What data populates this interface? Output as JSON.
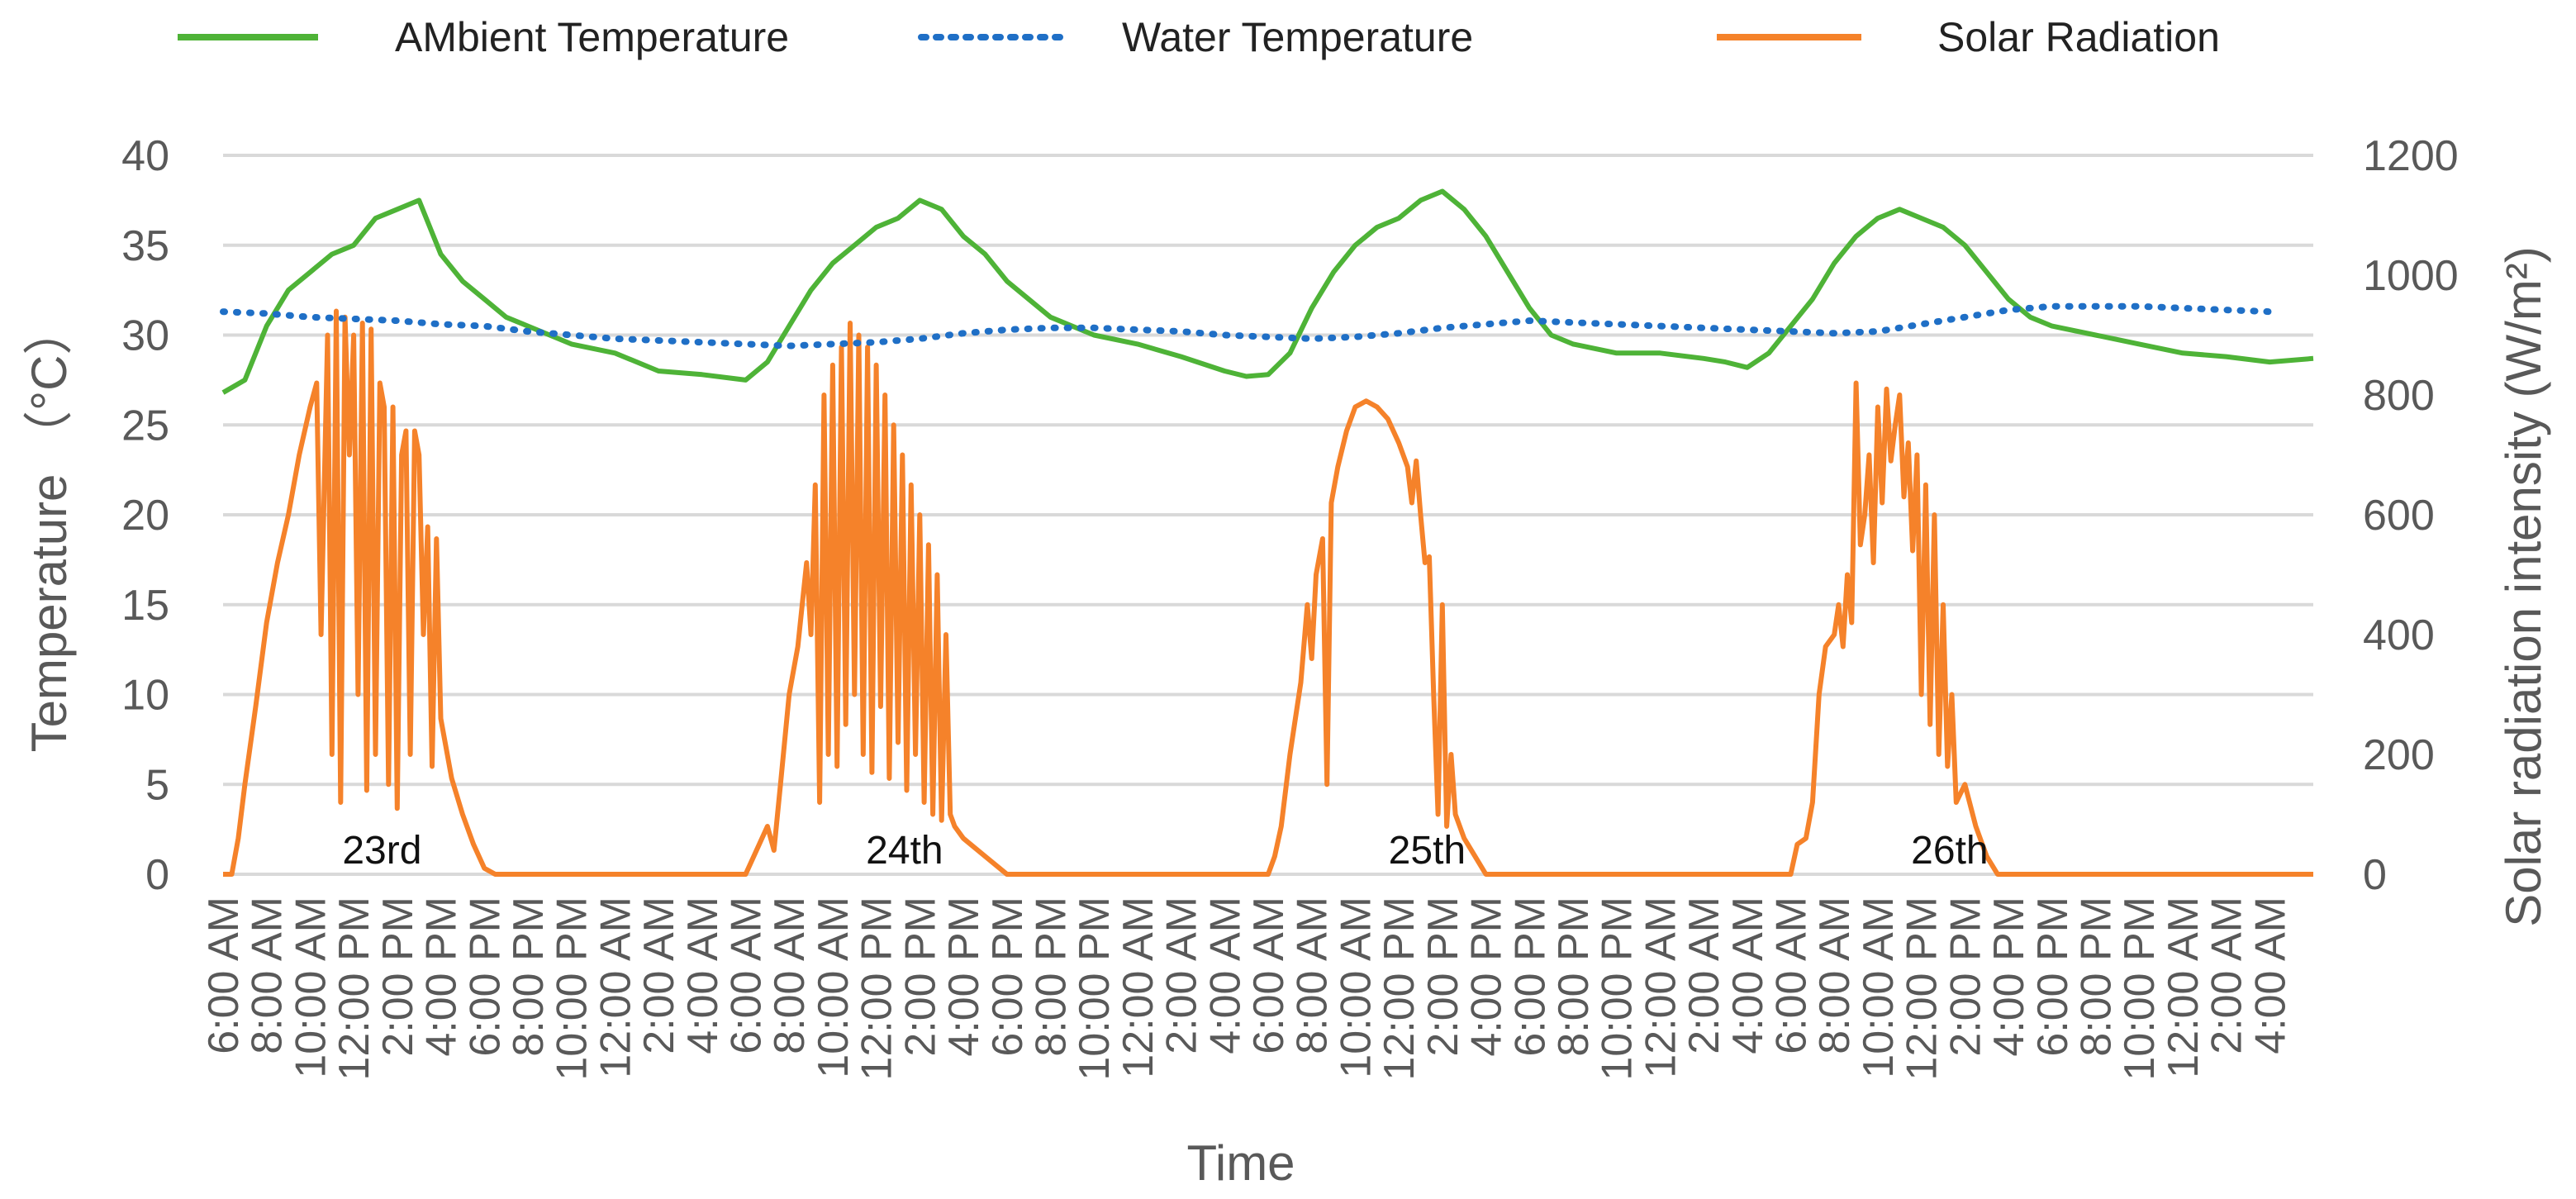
{
  "chart_data": {
    "type": "line",
    "title": "",
    "xlabel": "Time",
    "ylabel": "Temperature （°C）",
    "y2label": "Solar radiation intensity  (W/m²)",
    "ylim": [
      0,
      40
    ],
    "y2lim": [
      0,
      1200
    ],
    "yticks": [
      "0",
      "5",
      "10",
      "15",
      "20",
      "25",
      "30",
      "35",
      "40"
    ],
    "y2ticks": [
      "0",
      "200",
      "400",
      "600",
      "800",
      "1000",
      "1200"
    ],
    "x_start_hour": 6,
    "x_end_hour": 102,
    "x_tick_labels": [
      "6:00 AM",
      "8:00 AM",
      "10:00 AM",
      "12:00 PM",
      "2:00 PM",
      "4:00 PM",
      "6:00 PM",
      "8:00 PM",
      "10:00 PM",
      "12:00 AM",
      "2:00 AM",
      "4:00 AM",
      "6:00 AM",
      "8:00 AM",
      "10:00 AM",
      "12:00 PM",
      "2:00 PM",
      "4:00 PM",
      "6:00 PM",
      "8:00 PM",
      "10:00 PM",
      "12:00 AM",
      "2:00 AM",
      "4:00 AM",
      "6:00 AM",
      "8:00 AM",
      "10:00 AM",
      "12:00 PM",
      "2:00 PM",
      "4:00 PM",
      "6:00 PM",
      "8:00 PM",
      "10:00 PM",
      "12:00 AM",
      "2:00 AM",
      "4:00 AM",
      "6:00 AM",
      "8:00 AM",
      "10:00 AM",
      "12:00 PM",
      "2:00 PM",
      "4:00 PM",
      "6:00 PM",
      "8:00 PM",
      "10:00 PM",
      "12:00 AM",
      "2:00 AM",
      "4:00 AM"
    ],
    "day_labels": [
      {
        "text": "23rd",
        "hour": 13.3
      },
      {
        "text": "24th",
        "hour": 37.3
      },
      {
        "text": "25th",
        "hour": 61.3
      },
      {
        "text": "26th",
        "hour": 85.3
      }
    ],
    "legend": [
      "AMbient Temperature",
      "Water Temperature",
      "Solar Radiation"
    ],
    "series": [
      {
        "name": "AMbient Temperature",
        "axis": "left",
        "color": "#4eb337",
        "style": "solid",
        "points": [
          [
            6,
            26.8
          ],
          [
            7,
            27.5
          ],
          [
            8,
            30.5
          ],
          [
            9,
            32.5
          ],
          [
            10,
            33.5
          ],
          [
            11,
            34.5
          ],
          [
            12,
            35
          ],
          [
            13,
            36.5
          ],
          [
            14,
            37
          ],
          [
            15,
            37.5
          ],
          [
            16,
            34.5
          ],
          [
            17,
            33
          ],
          [
            18,
            32
          ],
          [
            19,
            31
          ],
          [
            20,
            30.5
          ],
          [
            22,
            29.5
          ],
          [
            24,
            29
          ],
          [
            26,
            28
          ],
          [
            28,
            27.8
          ],
          [
            30,
            27.5
          ],
          [
            31,
            28.5
          ],
          [
            32,
            30.5
          ],
          [
            33,
            32.5
          ],
          [
            34,
            34
          ],
          [
            35,
            35
          ],
          [
            36,
            36
          ],
          [
            37,
            36.5
          ],
          [
            38,
            37.5
          ],
          [
            39,
            37
          ],
          [
            40,
            35.5
          ],
          [
            41,
            34.5
          ],
          [
            42,
            33
          ],
          [
            43,
            32
          ],
          [
            44,
            31
          ],
          [
            46,
            30
          ],
          [
            48,
            29.5
          ],
          [
            50,
            28.8
          ],
          [
            52,
            28
          ],
          [
            53,
            27.7
          ],
          [
            54,
            27.8
          ],
          [
            55,
            29
          ],
          [
            56,
            31.5
          ],
          [
            57,
            33.5
          ],
          [
            58,
            35
          ],
          [
            59,
            36
          ],
          [
            60,
            36.5
          ],
          [
            61,
            37.5
          ],
          [
            62,
            38
          ],
          [
            63,
            37
          ],
          [
            64,
            35.5
          ],
          [
            65,
            33.5
          ],
          [
            66,
            31.5
          ],
          [
            67,
            30
          ],
          [
            68,
            29.5
          ],
          [
            70,
            29
          ],
          [
            72,
            29
          ],
          [
            74,
            28.7
          ],
          [
            75,
            28.5
          ],
          [
            76,
            28.2
          ],
          [
            77,
            29
          ],
          [
            78,
            30.5
          ],
          [
            79,
            32
          ],
          [
            80,
            34
          ],
          [
            81,
            35.5
          ],
          [
            82,
            36.5
          ],
          [
            83,
            37
          ],
          [
            84,
            36.5
          ],
          [
            85,
            36
          ],
          [
            86,
            35
          ],
          [
            87,
            33.5
          ],
          [
            88,
            32
          ],
          [
            89,
            31
          ],
          [
            90,
            30.5
          ],
          [
            92,
            30
          ],
          [
            94,
            29.5
          ],
          [
            96,
            29
          ],
          [
            98,
            28.8
          ],
          [
            100,
            28.5
          ],
          [
            102,
            28.7
          ]
        ]
      },
      {
        "name": "Water Temperature",
        "axis": "left",
        "color": "#1f6fc6",
        "style": "dotted",
        "points": [
          [
            6,
            31.3
          ],
          [
            8,
            31.2
          ],
          [
            10,
            31
          ],
          [
            12,
            30.9
          ],
          [
            14,
            30.8
          ],
          [
            16,
            30.6
          ],
          [
            18,
            30.5
          ],
          [
            20,
            30.2
          ],
          [
            22,
            30
          ],
          [
            24,
            29.8
          ],
          [
            26,
            29.7
          ],
          [
            28,
            29.6
          ],
          [
            30,
            29.5
          ],
          [
            32,
            29.4
          ],
          [
            34,
            29.5
          ],
          [
            36,
            29.6
          ],
          [
            38,
            29.8
          ],
          [
            40,
            30.1
          ],
          [
            42,
            30.3
          ],
          [
            44,
            30.4
          ],
          [
            46,
            30.4
          ],
          [
            48,
            30.3
          ],
          [
            50,
            30.2
          ],
          [
            52,
            30
          ],
          [
            54,
            29.9
          ],
          [
            56,
            29.8
          ],
          [
            58,
            29.9
          ],
          [
            60,
            30.1
          ],
          [
            62,
            30.4
          ],
          [
            64,
            30.6
          ],
          [
            66,
            30.8
          ],
          [
            68,
            30.7
          ],
          [
            70,
            30.6
          ],
          [
            72,
            30.5
          ],
          [
            74,
            30.4
          ],
          [
            76,
            30.3
          ],
          [
            78,
            30.2
          ],
          [
            80,
            30.1
          ],
          [
            82,
            30.2
          ],
          [
            84,
            30.6
          ],
          [
            86,
            31
          ],
          [
            88,
            31.4
          ],
          [
            90,
            31.6
          ],
          [
            92,
            31.6
          ],
          [
            94,
            31.6
          ],
          [
            96,
            31.5
          ],
          [
            98,
            31.4
          ],
          [
            100,
            31.3
          ]
        ]
      },
      {
        "name": "Solar Radiation",
        "axis": "right",
        "color": "#f5822a",
        "style": "solid",
        "points": [
          [
            6,
            0
          ],
          [
            6.4,
            0
          ],
          [
            6.7,
            60
          ],
          [
            7,
            150
          ],
          [
            7.5,
            280
          ],
          [
            8,
            420
          ],
          [
            8.5,
            520
          ],
          [
            9,
            600
          ],
          [
            9.5,
            700
          ],
          [
            10,
            780
          ],
          [
            10.3,
            820
          ],
          [
            10.5,
            400
          ],
          [
            10.8,
            900
          ],
          [
            11,
            200
          ],
          [
            11.2,
            940
          ],
          [
            11.4,
            120
          ],
          [
            11.6,
            930
          ],
          [
            11.8,
            700
          ],
          [
            12,
            900
          ],
          [
            12.2,
            300
          ],
          [
            12.4,
            920
          ],
          [
            12.6,
            140
          ],
          [
            12.8,
            910
          ],
          [
            13,
            200
          ],
          [
            13.2,
            820
          ],
          [
            13.4,
            780
          ],
          [
            13.6,
            150
          ],
          [
            13.8,
            780
          ],
          [
            14,
            110
          ],
          [
            14.2,
            700
          ],
          [
            14.4,
            740
          ],
          [
            14.6,
            200
          ],
          [
            14.8,
            740
          ],
          [
            15,
            700
          ],
          [
            15.2,
            400
          ],
          [
            15.4,
            580
          ],
          [
            15.6,
            180
          ],
          [
            15.8,
            560
          ],
          [
            16,
            260
          ],
          [
            16.5,
            160
          ],
          [
            17,
            100
          ],
          [
            17.5,
            50
          ],
          [
            18,
            10
          ],
          [
            18.5,
            0
          ],
          [
            30,
            0
          ],
          [
            30.5,
            40
          ],
          [
            31,
            80
          ],
          [
            31.3,
            40
          ],
          [
            31.6,
            150
          ],
          [
            32,
            300
          ],
          [
            32.4,
            380
          ],
          [
            32.8,
            520
          ],
          [
            33,
            400
          ],
          [
            33.2,
            650
          ],
          [
            33.4,
            120
          ],
          [
            33.6,
            800
          ],
          [
            33.8,
            200
          ],
          [
            34,
            850
          ],
          [
            34.2,
            180
          ],
          [
            34.4,
            880
          ],
          [
            34.6,
            250
          ],
          [
            34.8,
            920
          ],
          [
            35,
            300
          ],
          [
            35.2,
            900
          ],
          [
            35.4,
            200
          ],
          [
            35.6,
            880
          ],
          [
            35.8,
            170
          ],
          [
            36,
            850
          ],
          [
            36.2,
            280
          ],
          [
            36.4,
            800
          ],
          [
            36.6,
            160
          ],
          [
            36.8,
            750
          ],
          [
            37,
            220
          ],
          [
            37.2,
            700
          ],
          [
            37.4,
            140
          ],
          [
            37.6,
            650
          ],
          [
            37.8,
            200
          ],
          [
            38,
            600
          ],
          [
            38.2,
            120
          ],
          [
            38.4,
            550
          ],
          [
            38.6,
            100
          ],
          [
            38.8,
            500
          ],
          [
            39,
            90
          ],
          [
            39.2,
            400
          ],
          [
            39.4,
            100
          ],
          [
            39.6,
            80
          ],
          [
            40,
            60
          ],
          [
            41,
            30
          ],
          [
            42,
            0
          ],
          [
            54,
            0
          ],
          [
            54.3,
            30
          ],
          [
            54.6,
            80
          ],
          [
            55,
            200
          ],
          [
            55.5,
            320
          ],
          [
            55.8,
            450
          ],
          [
            56,
            360
          ],
          [
            56.2,
            500
          ],
          [
            56.5,
            560
          ],
          [
            56.7,
            150
          ],
          [
            56.9,
            620
          ],
          [
            57.2,
            680
          ],
          [
            57.6,
            740
          ],
          [
            58,
            780
          ],
          [
            58.5,
            790
          ],
          [
            59,
            780
          ],
          [
            59.5,
            760
          ],
          [
            60,
            720
          ],
          [
            60.4,
            680
          ],
          [
            60.6,
            620
          ],
          [
            60.8,
            690
          ],
          [
            61,
            600
          ],
          [
            61.2,
            520
          ],
          [
            61.4,
            530
          ],
          [
            61.6,
            300
          ],
          [
            61.8,
            100
          ],
          [
            62,
            450
          ],
          [
            62.2,
            80
          ],
          [
            62.4,
            200
          ],
          [
            62.6,
            100
          ],
          [
            63,
            60
          ],
          [
            63.5,
            30
          ],
          [
            64,
            0
          ],
          [
            78,
            0
          ],
          [
            78.3,
            50
          ],
          [
            78.7,
            60
          ],
          [
            79,
            120
          ],
          [
            79.3,
            300
          ],
          [
            79.6,
            380
          ],
          [
            80,
            400
          ],
          [
            80.2,
            450
          ],
          [
            80.4,
            380
          ],
          [
            80.6,
            500
          ],
          [
            80.8,
            420
          ],
          [
            81,
            820
          ],
          [
            81.2,
            550
          ],
          [
            81.4,
            600
          ],
          [
            81.6,
            700
          ],
          [
            81.8,
            520
          ],
          [
            82,
            780
          ],
          [
            82.2,
            620
          ],
          [
            82.4,
            810
          ],
          [
            82.6,
            690
          ],
          [
            82.8,
            750
          ],
          [
            83,
            800
          ],
          [
            83.2,
            630
          ],
          [
            83.4,
            720
          ],
          [
            83.6,
            540
          ],
          [
            83.8,
            700
          ],
          [
            84,
            300
          ],
          [
            84.2,
            650
          ],
          [
            84.4,
            250
          ],
          [
            84.6,
            600
          ],
          [
            84.8,
            200
          ],
          [
            85,
            450
          ],
          [
            85.2,
            180
          ],
          [
            85.4,
            300
          ],
          [
            85.6,
            120
          ],
          [
            86,
            150
          ],
          [
            86.5,
            80
          ],
          [
            87,
            30
          ],
          [
            87.5,
            0
          ],
          [
            102,
            0
          ]
        ]
      }
    ]
  }
}
